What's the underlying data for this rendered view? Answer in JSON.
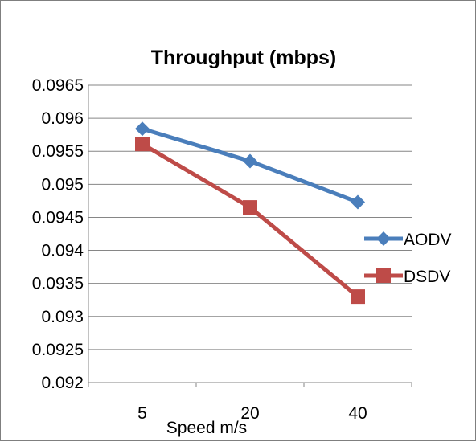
{
  "chart_data": {
    "type": "line",
    "title": "Throughput (mbps)",
    "xlabel": "Speed m/s",
    "ylabel": "",
    "categories": [
      "5",
      "20",
      "40"
    ],
    "ylim": [
      0.092,
      0.0965
    ],
    "yticks": [
      "0.0965",
      "0.096",
      "0.0955",
      "0.095",
      "0.0945",
      "0.094",
      "0.0935",
      "0.093",
      "0.0925",
      "0.092"
    ],
    "grid": true,
    "legend_position": "right",
    "series": [
      {
        "name": "AODV",
        "values": [
          0.09584,
          0.09535,
          0.09473
        ],
        "color": "#4a7ebb",
        "marker": "diamond"
      },
      {
        "name": "DSDV",
        "values": [
          0.09561,
          0.09465,
          0.0933
        ],
        "color": "#be4b48",
        "marker": "square"
      }
    ]
  }
}
